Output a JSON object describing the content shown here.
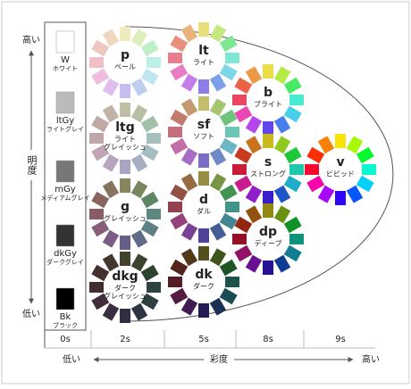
{
  "axis": {
    "lightness": {
      "label": "明度",
      "high": "高い",
      "low": "低い"
    },
    "chroma": {
      "label": "彩度",
      "low": "低い",
      "high": "高い"
    }
  },
  "columns": [
    "0s",
    "2s",
    "5s",
    "8s",
    "9s"
  ],
  "grays": [
    {
      "code": "W",
      "name": "ホワイト"
    },
    {
      "code": "ltGy",
      "name": "ライトグレイ"
    },
    {
      "code": "mGy",
      "name": "メディアムグレイ"
    },
    {
      "code": "dkGy",
      "name": "ダークグレイ"
    },
    {
      "code": "Bk",
      "name": "ブラック"
    }
  ],
  "tones": [
    {
      "code": "p",
      "name": [
        "ペール"
      ]
    },
    {
      "code": "lt",
      "name": [
        "ライト"
      ]
    },
    {
      "code": "b",
      "name": [
        "ブライト"
      ]
    },
    {
      "code": "ltg",
      "name": [
        "ライト",
        "グレイッシュ"
      ]
    },
    {
      "code": "sf",
      "name": [
        "ソフト"
      ]
    },
    {
      "code": "s",
      "name": [
        "ストロング"
      ]
    },
    {
      "code": "v",
      "name": [
        "ビビッド"
      ]
    },
    {
      "code": "g",
      "name": [
        "グレイッシュ"
      ]
    },
    {
      "code": "d",
      "name": [
        "ダル"
      ]
    },
    {
      "code": "dp",
      "name": [
        "ディープ"
      ]
    },
    {
      "code": "dkg",
      "name": [
        "ダーク",
        "グレイッシュ"
      ]
    },
    {
      "code": "dk",
      "name": [
        "ダーク"
      ]
    }
  ]
}
